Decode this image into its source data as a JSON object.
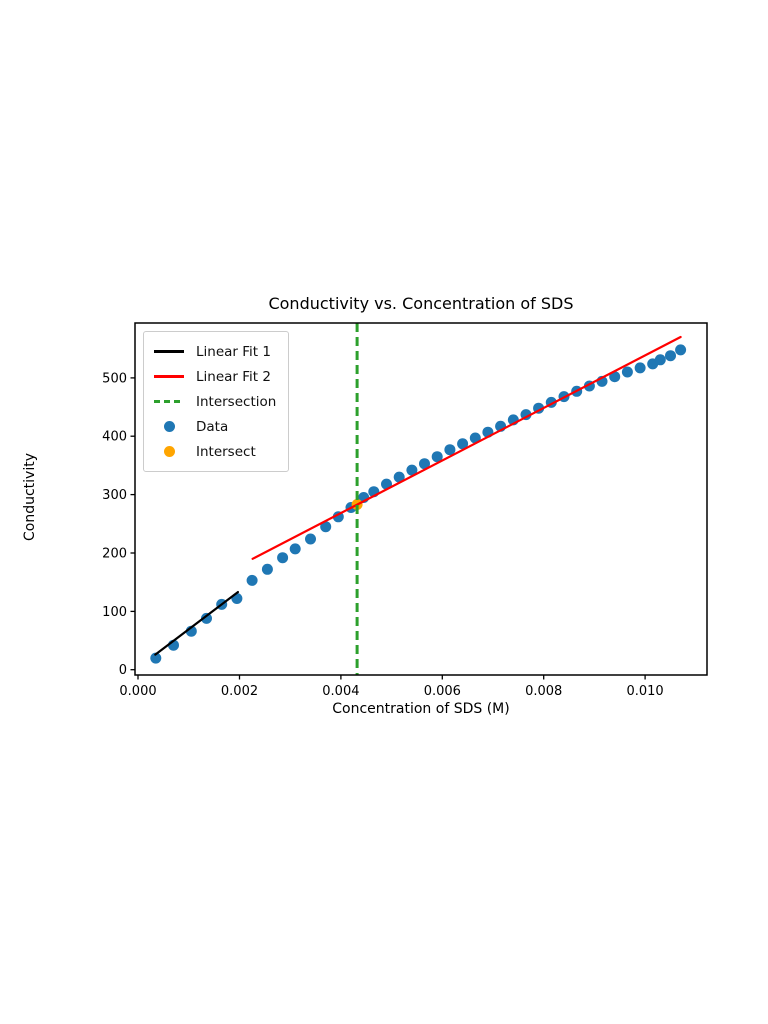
{
  "chart_data": {
    "type": "scatter",
    "title": "Conductivity vs. Concentration of SDS",
    "xlabel": "Concentration of SDS (M)",
    "ylabel": "Conductivity",
    "xlim": [
      -6e-05,
      0.01122
    ],
    "ylim": [
      -9,
      594
    ],
    "grid": false,
    "legend_position": "upper left",
    "x_ticks": [
      0.0,
      0.002,
      0.004,
      0.006,
      0.008,
      0.01
    ],
    "x_tick_labels": [
      "0.000",
      "0.002",
      "0.004",
      "0.006",
      "0.008",
      "0.010"
    ],
    "y_ticks": [
      0,
      100,
      200,
      300,
      400,
      500
    ],
    "y_tick_labels": [
      "0",
      "100",
      "200",
      "300",
      "400",
      "500"
    ],
    "colors": {
      "data": "#1f77b4",
      "fit1": "#000000",
      "fit2": "#ff0000",
      "intersection_line": "#2ca02c",
      "intersect_point": "#ffa500",
      "axes": "#000000"
    },
    "series": [
      {
        "name": "Data",
        "type": "scatter",
        "color": "#1f77b4",
        "points": [
          [
            0.00035,
            20
          ],
          [
            0.0007,
            42
          ],
          [
            0.00105,
            66
          ],
          [
            0.00135,
            88
          ],
          [
            0.00165,
            112
          ],
          [
            0.00195,
            122
          ],
          [
            0.00225,
            153
          ],
          [
            0.00255,
            172
          ],
          [
            0.00285,
            192
          ],
          [
            0.0031,
            207
          ],
          [
            0.0034,
            224
          ],
          [
            0.0037,
            245
          ],
          [
            0.00395,
            262
          ],
          [
            0.0042,
            278
          ],
          [
            0.00445,
            295
          ],
          [
            0.00465,
            305
          ],
          [
            0.0049,
            318
          ],
          [
            0.00515,
            330
          ],
          [
            0.0054,
            342
          ],
          [
            0.00565,
            353
          ],
          [
            0.0059,
            365
          ],
          [
            0.00615,
            377
          ],
          [
            0.0064,
            387
          ],
          [
            0.00665,
            397
          ],
          [
            0.0069,
            407
          ],
          [
            0.00715,
            417
          ],
          [
            0.0074,
            428
          ],
          [
            0.00765,
            437
          ],
          [
            0.0079,
            448
          ],
          [
            0.00815,
            458
          ],
          [
            0.0084,
            468
          ],
          [
            0.00865,
            477
          ],
          [
            0.0089,
            486
          ],
          [
            0.00915,
            494
          ],
          [
            0.0094,
            502
          ],
          [
            0.00965,
            510
          ],
          [
            0.0099,
            517
          ],
          [
            0.01015,
            524
          ],
          [
            0.0103,
            531
          ],
          [
            0.0105,
            538
          ],
          [
            0.0107,
            548
          ]
        ]
      },
      {
        "name": "Linear Fit 1",
        "type": "line",
        "color": "#000000",
        "endpoints": [
          [
            0.00034,
            26
          ],
          [
            0.00197,
            133
          ]
        ]
      },
      {
        "name": "Linear Fit 2",
        "type": "line",
        "color": "#ff0000",
        "endpoints": [
          [
            0.00226,
            190
          ],
          [
            0.0107,
            570
          ]
        ]
      },
      {
        "name": "Intersection",
        "type": "vline",
        "color": "#2ca02c",
        "linestyle": "dashed",
        "x": 0.00432
      },
      {
        "name": "Intersect",
        "type": "scatter",
        "color": "#ffa500",
        "points": [
          [
            0.00432,
            283
          ]
        ]
      }
    ],
    "legend_items": [
      {
        "label": "Linear Fit 1",
        "swatch": "line",
        "color": "#000000"
      },
      {
        "label": "Linear Fit 2",
        "swatch": "line",
        "color": "#ff0000"
      },
      {
        "label": "Intersection",
        "swatch": "dashed-line",
        "color": "#2ca02c"
      },
      {
        "label": "Data",
        "swatch": "dot",
        "color": "#1f77b4"
      },
      {
        "label": "Intersect",
        "swatch": "dot",
        "color": "#ffa500"
      }
    ]
  }
}
